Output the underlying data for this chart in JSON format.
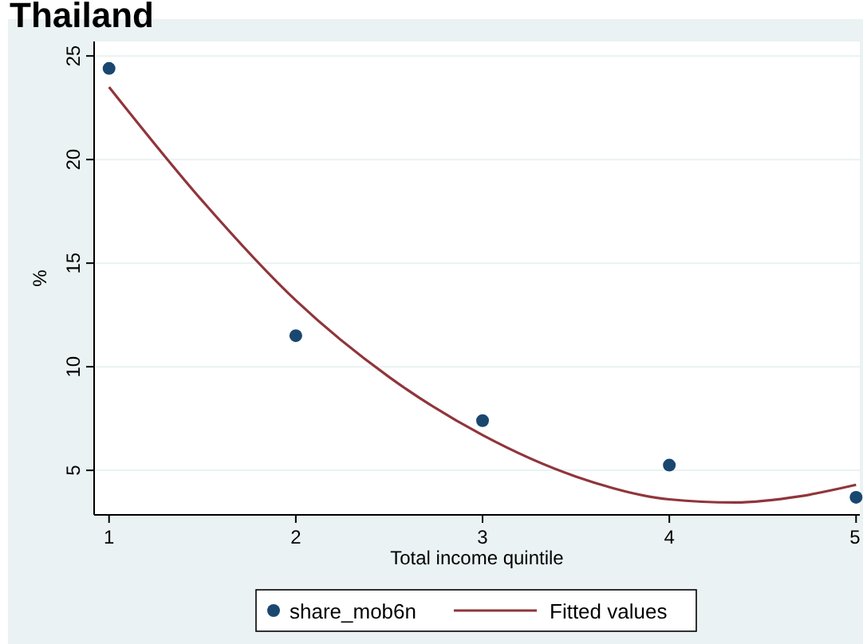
{
  "chart_data": {
    "type": "scatter",
    "title": "Thailand",
    "xlabel": "Total income quintile",
    "ylabel": "%",
    "xlim": [
      0.92,
      5.02
    ],
    "ylim": [
      2.85,
      25.7
    ],
    "xticks": [
      1,
      2,
      3,
      4,
      5
    ],
    "yticks": [
      5,
      10,
      15,
      20,
      25
    ],
    "grid": "y",
    "legend": "bottom",
    "marker": "circle",
    "series": [
      {
        "name": "share_mob6n",
        "color": "#1a476f",
        "x": [
          1,
          2,
          3,
          4,
          5
        ],
        "values": [
          24.4,
          11.5,
          7.4,
          5.25,
          3.7
        ]
      },
      {
        "name": "Fitted values",
        "type": "line",
        "color": "#90353b",
        "marker": "none",
        "line_style": "solid",
        "x": [
          1,
          1.5,
          2,
          2.5,
          3,
          3.5,
          4,
          4.35,
          4.7,
          5
        ],
        "values": [
          23.5,
          18,
          13.2,
          9.5,
          6.7,
          4.7,
          3.6,
          3.45,
          3.75,
          4.3
        ]
      }
    ]
  }
}
